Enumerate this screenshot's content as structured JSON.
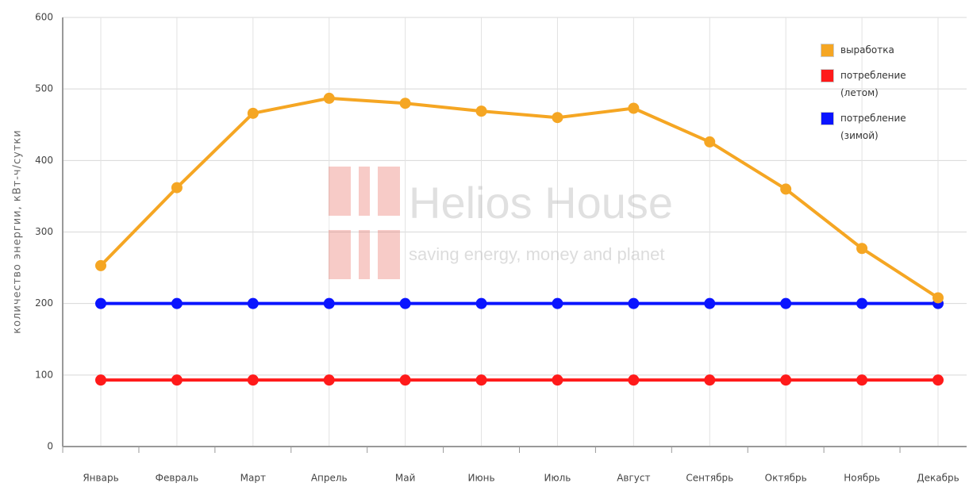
{
  "chart_data": {
    "type": "line",
    "y_label": "количество энергии, кВт-ч/сутки",
    "watermark": {
      "title": "Helios House",
      "subtitle": "saving energy, money and planet"
    },
    "categories": [
      "Январь",
      "Февраль",
      "Март",
      "Апрель",
      "Май",
      "Июнь",
      "Июль",
      "Август",
      "Сентябрь",
      "Октябрь",
      "Ноябрь",
      "Декабрь"
    ],
    "series": [
      {
        "name": "выработка",
        "color": "#f5a623",
        "values": [
          253,
          362,
          466,
          487,
          480,
          469,
          460,
          473,
          426,
          360,
          277,
          208
        ]
      },
      {
        "name": "потребление (летом)",
        "color": "#ff1a1a",
        "values": [
          93,
          93,
          93,
          93,
          93,
          93,
          93,
          93,
          93,
          93,
          93,
          93
        ]
      },
      {
        "name": "потребление (зимой)",
        "color": "#0a14ff",
        "values": [
          200,
          200,
          200,
          200,
          200,
          200,
          200,
          200,
          200,
          200,
          200,
          200
        ]
      }
    ],
    "ylim": [
      0,
      600
    ],
    "yticks": [
      0,
      100,
      200,
      300,
      400,
      500,
      600
    ],
    "grid": true,
    "legend": "top-right"
  }
}
